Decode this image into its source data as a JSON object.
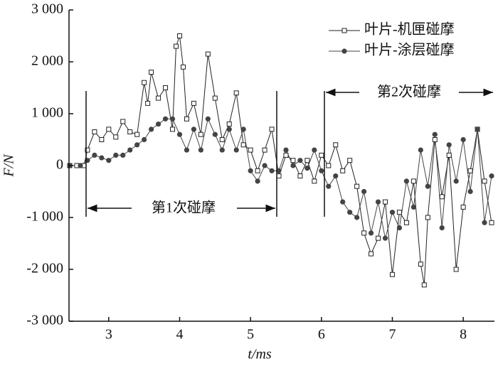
{
  "chart_data": {
    "type": "line",
    "xlabel": "t/ms",
    "ylabel": "F/N",
    "annotations": [
      "第1次碰摩",
      "第2次碰摩"
    ],
    "xlim": [
      2.44,
      8.44
    ],
    "xticks": [
      3,
      4,
      5,
      6,
      7,
      8
    ],
    "ylim": [
      -3000,
      3000
    ],
    "yticks": [
      {
        "value": -3000,
        "label": "-3 000"
      },
      {
        "value": -2000,
        "label": "-2 000"
      },
      {
        "value": -1000,
        "label": "-1 000"
      },
      0,
      {
        "value": 1000,
        "label": "1 000"
      },
      {
        "value": 2000,
        "label": "2 000"
      },
      {
        "value": 3000,
        "label": "3 000"
      }
    ],
    "legend": "upper right",
    "series": [
      {
        "name": "叶片-机匣碰摩",
        "color": "#222",
        "marker": "square",
        "x": [
          2.45,
          2.55,
          2.65,
          2.7,
          2.8,
          2.9,
          3.0,
          3.1,
          3.2,
          3.3,
          3.4,
          3.5,
          3.55,
          3.6,
          3.7,
          3.8,
          3.9,
          3.95,
          4.0,
          4.05,
          4.1,
          4.2,
          4.3,
          4.4,
          4.5,
          4.6,
          4.7,
          4.8,
          4.9,
          5.0,
          5.1,
          5.2,
          5.3,
          5.4,
          5.5,
          5.6,
          5.7,
          5.8,
          5.9,
          6.0,
          6.1,
          6.2,
          6.3,
          6.4,
          6.5,
          6.6,
          6.7,
          6.8,
          6.9,
          7.0,
          7.1,
          7.2,
          7.3,
          7.4,
          7.45,
          7.5,
          7.6,
          7.7,
          7.8,
          7.9,
          8.0,
          8.1,
          8.2,
          8.3,
          8.4
        ],
        "values": [
          0,
          0,
          0,
          300,
          650,
          500,
          700,
          550,
          850,
          650,
          600,
          1600,
          1200,
          1800,
          1300,
          1500,
          700,
          2300,
          2500,
          1900,
          900,
          1200,
          600,
          2150,
          1300,
          500,
          800,
          1400,
          400,
          300,
          -100,
          300,
          700,
          -200,
          200,
          100,
          -200,
          100,
          -300,
          200,
          0,
          400,
          -100,
          100,
          -400,
          -1300,
          -1700,
          -1400,
          -700,
          -2100,
          -900,
          -1100,
          -300,
          -1900,
          -2300,
          -1000,
          500,
          -600,
          200,
          -2000,
          -800,
          -100,
          700,
          -300,
          -1100
        ]
      },
      {
        "name": "叶片-涂层碰摩",
        "color": "#444",
        "marker": "circle",
        "x": [
          2.45,
          2.6,
          2.7,
          2.8,
          2.9,
          3.0,
          3.1,
          3.2,
          3.3,
          3.4,
          3.5,
          3.6,
          3.7,
          3.8,
          3.9,
          4.0,
          4.1,
          4.2,
          4.3,
          4.4,
          4.5,
          4.6,
          4.7,
          4.8,
          4.9,
          5.0,
          5.1,
          5.2,
          5.3,
          5.4,
          5.5,
          5.6,
          5.7,
          5.8,
          5.9,
          6.0,
          6.1,
          6.2,
          6.3,
          6.4,
          6.5,
          6.6,
          6.7,
          6.8,
          6.9,
          7.0,
          7.1,
          7.2,
          7.3,
          7.4,
          7.5,
          7.6,
          7.7,
          7.8,
          7.9,
          8.0,
          8.1,
          8.2,
          8.3,
          8.4
        ],
        "values": [
          0,
          0,
          100,
          200,
          150,
          100,
          200,
          200,
          300,
          400,
          500,
          700,
          800,
          900,
          900,
          600,
          300,
          700,
          300,
          900,
          600,
          300,
          700,
          300,
          700,
          -100,
          -300,
          0,
          -100,
          -100,
          300,
          0,
          100,
          -50,
          300,
          -100,
          -400,
          -200,
          -700,
          -900,
          -1000,
          -500,
          -1300,
          -700,
          -1400,
          -900,
          -1200,
          -300,
          -800,
          300,
          -400,
          600,
          -1200,
          400,
          -300,
          500,
          -500,
          700,
          -1100,
          -200
        ]
      }
    ]
  }
}
